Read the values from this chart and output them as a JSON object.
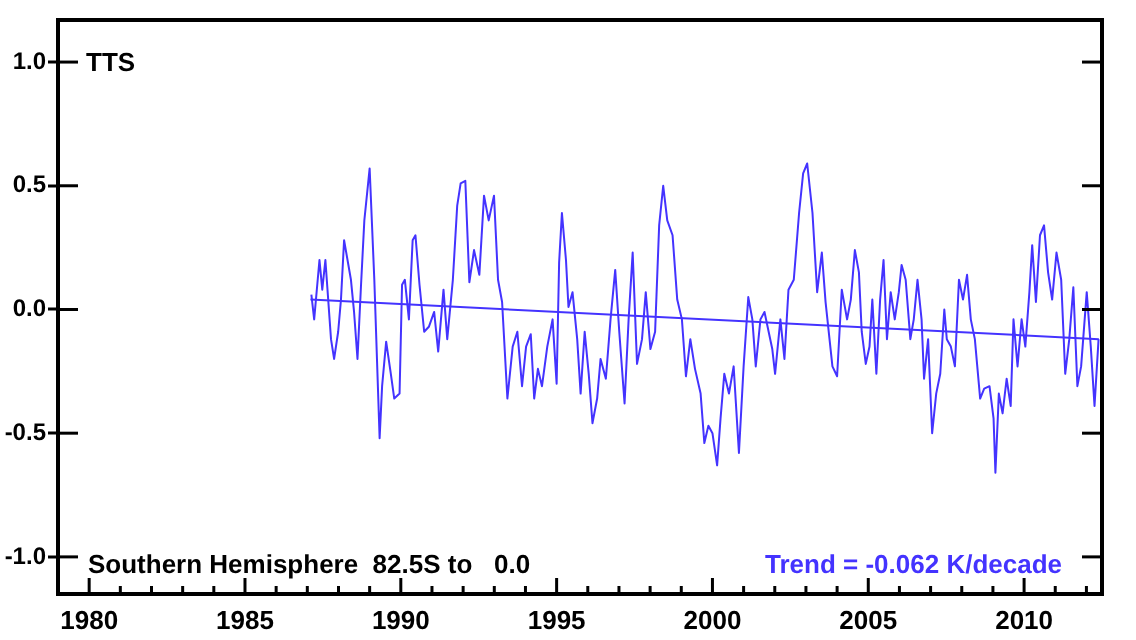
{
  "chart_data": {
    "type": "line",
    "annotations": [
      "TTS",
      "Southern Hemisphere  82.5S to   0.0",
      "Trend = -0.062 K/decade"
    ],
    "xlim": [
      1979,
      2012.5
    ],
    "xticks": [
      {
        "value": 1979,
        "label": null
      },
      {
        "value": 1980,
        "label": "1980"
      },
      {
        "value": 1981,
        "label": null
      },
      {
        "value": 1982,
        "label": null
      },
      {
        "value": 1983,
        "label": null
      },
      {
        "value": 1984,
        "label": null
      },
      {
        "value": 1985,
        "label": "1985"
      },
      {
        "value": 1986,
        "label": null
      },
      {
        "value": 1987,
        "label": null
      },
      {
        "value": 1988,
        "label": null
      },
      {
        "value": 1989,
        "label": null
      },
      {
        "value": 1990,
        "label": "1990"
      },
      {
        "value": 1991,
        "label": null
      },
      {
        "value": 1992,
        "label": null
      },
      {
        "value": 1993,
        "label": null
      },
      {
        "value": 1994,
        "label": null
      },
      {
        "value": 1995,
        "label": "1995"
      },
      {
        "value": 1996,
        "label": null
      },
      {
        "value": 1997,
        "label": null
      },
      {
        "value": 1998,
        "label": null
      },
      {
        "value": 1999,
        "label": null
      },
      {
        "value": 2000,
        "label": "2000"
      },
      {
        "value": 2001,
        "label": null
      },
      {
        "value": 2002,
        "label": null
      },
      {
        "value": 2003,
        "label": null
      },
      {
        "value": 2004,
        "label": null
      },
      {
        "value": 2005,
        "label": "2005"
      },
      {
        "value": 2006,
        "label": null
      },
      {
        "value": 2007,
        "label": null
      },
      {
        "value": 2008,
        "label": null
      },
      {
        "value": 2009,
        "label": null
      },
      {
        "value": 2010,
        "label": "2010"
      },
      {
        "value": 2011,
        "label": null
      },
      {
        "value": 2012,
        "label": null
      }
    ],
    "ylim": [
      -1.15,
      1.17
    ],
    "yticks": [
      {
        "value": -1,
        "label": "-1.0"
      },
      {
        "value": -0.5,
        "label": "-0.5"
      },
      {
        "value": 0,
        "label": "0.0"
      },
      {
        "value": 0.5,
        "label": "0.5"
      },
      {
        "value": 1,
        "label": "1.0"
      }
    ],
    "grid": false,
    "legend": false,
    "series": [
      {
        "type": "line",
        "color": "#4433ff",
        "x": [
          1987.13,
          1987.22,
          1987.39,
          1987.48,
          1987.58,
          1987.76,
          1987.86,
          1987.99,
          1988.08,
          1988.18,
          1988.4,
          1988.5,
          1988.61,
          1988.72,
          1988.83,
          1989.0,
          1989.15,
          1989.32,
          1989.4,
          1989.53,
          1989.68,
          1989.79,
          1989.96,
          1990.04,
          1990.13,
          1990.26,
          1990.38,
          1990.47,
          1990.6,
          1990.75,
          1990.9,
          1991.07,
          1991.2,
          1991.37,
          1991.49,
          1991.67,
          1991.81,
          1991.92,
          1992.07,
          1992.2,
          1992.35,
          1992.52,
          1992.67,
          1992.82,
          1992.99,
          1993.12,
          1993.25,
          1993.42,
          1993.59,
          1993.74,
          1993.89,
          1994.02,
          1994.17,
          1994.28,
          1994.4,
          1994.53,
          1994.7,
          1994.87,
          1995.0,
          1995.08,
          1995.17,
          1995.3,
          1995.38,
          1995.51,
          1995.66,
          1995.77,
          1995.9,
          1996.03,
          1996.15,
          1996.3,
          1996.41,
          1996.58,
          1996.73,
          1996.88,
          1997.01,
          1997.18,
          1997.31,
          1997.44,
          1997.58,
          1997.74,
          1997.86,
          1998.01,
          1998.16,
          1998.29,
          1998.42,
          1998.55,
          1998.72,
          1998.87,
          1999.02,
          1999.15,
          1999.29,
          1999.44,
          1999.62,
          1999.74,
          1999.87,
          2000.0,
          2000.15,
          2000.26,
          2000.38,
          2000.53,
          2000.68,
          2000.85,
          2001.0,
          2001.15,
          2001.28,
          2001.39,
          2001.54,
          2001.67,
          2001.92,
          2002.01,
          2002.18,
          2002.31,
          2002.44,
          2002.61,
          2002.78,
          2002.91,
          2003.04,
          2003.21,
          2003.36,
          2003.51,
          2003.63,
          2003.85,
          2004.0,
          2004.15,
          2004.32,
          2004.44,
          2004.57,
          2004.7,
          2004.79,
          2004.92,
          2005.04,
          2005.13,
          2005.26,
          2005.38,
          2005.49,
          2005.6,
          2005.72,
          2005.85,
          2005.98,
          2006.07,
          2006.2,
          2006.35,
          2006.46,
          2006.58,
          2006.71,
          2006.79,
          2006.92,
          2007.05,
          2007.18,
          2007.31,
          2007.44,
          2007.52,
          2007.65,
          2007.78,
          2007.91,
          2008.04,
          2008.17,
          2008.29,
          2008.42,
          2008.59,
          2008.72,
          2008.89,
          2009.02,
          2009.08,
          2009.19,
          2009.31,
          2009.44,
          2009.57,
          2009.66,
          2009.79,
          2009.92,
          2010.04,
          2010.17,
          2010.26,
          2010.38,
          2010.51,
          2010.64,
          2010.77,
          2010.9,
          2011.04,
          2011.19,
          2011.32,
          2011.45,
          2011.58,
          2011.71,
          2011.83,
          2012.01,
          2012.14,
          2012.26,
          2012.39
        ],
        "values": [
          0.06,
          -0.04,
          0.2,
          0.08,
          0.2,
          -0.12,
          -0.2,
          -0.09,
          0.04,
          0.28,
          0.12,
          -0.01,
          -0.2,
          0.09,
          0.36,
          0.57,
          0.12,
          -0.52,
          -0.31,
          -0.13,
          -0.26,
          -0.36,
          -0.34,
          0.1,
          0.12,
          -0.04,
          0.28,
          0.3,
          0.1,
          -0.09,
          -0.07,
          -0.01,
          -0.17,
          0.08,
          -0.12,
          0.12,
          0.42,
          0.51,
          0.52,
          0.11,
          0.24,
          0.14,
          0.46,
          0.36,
          0.46,
          0.12,
          0.03,
          -0.36,
          -0.15,
          -0.09,
          -0.31,
          -0.15,
          -0.1,
          -0.36,
          -0.24,
          -0.31,
          -0.15,
          -0.04,
          -0.3,
          0.19,
          0.39,
          0.2,
          0.01,
          0.07,
          -0.12,
          -0.34,
          -0.09,
          -0.26,
          -0.46,
          -0.36,
          -0.2,
          -0.28,
          -0.04,
          0.16,
          -0.09,
          -0.38,
          -0.04,
          0.23,
          -0.22,
          -0.12,
          0.07,
          -0.16,
          -0.09,
          0.34,
          0.5,
          0.36,
          0.3,
          0.04,
          -0.04,
          -0.27,
          -0.12,
          -0.24,
          -0.34,
          -0.54,
          -0.47,
          -0.5,
          -0.63,
          -0.44,
          -0.26,
          -0.34,
          -0.23,
          -0.58,
          -0.23,
          0.05,
          -0.04,
          -0.23,
          -0.04,
          -0.01,
          -0.16,
          -0.26,
          -0.04,
          -0.2,
          0.08,
          0.12,
          0.39,
          0.55,
          0.59,
          0.39,
          0.07,
          0.23,
          0.03,
          -0.23,
          -0.27,
          0.08,
          -0.04,
          0.04,
          0.24,
          0.15,
          -0.09,
          -0.22,
          -0.15,
          0.04,
          -0.26,
          0.04,
          0.2,
          -0.12,
          0.07,
          -0.04,
          0.07,
          0.18,
          0.12,
          -0.12,
          -0.04,
          0.12,
          -0.04,
          -0.28,
          -0.12,
          -0.5,
          -0.34,
          -0.26,
          0.0,
          -0.12,
          -0.15,
          -0.23,
          0.12,
          0.04,
          0.14,
          -0.04,
          -0.12,
          -0.36,
          -0.32,
          -0.31,
          -0.44,
          -0.66,
          -0.34,
          -0.42,
          -0.28,
          -0.39,
          -0.04,
          -0.23,
          -0.04,
          -0.15,
          0.07,
          0.26,
          0.03,
          0.3,
          0.34,
          0.15,
          0.04,
          0.23,
          0.12,
          -0.26,
          -0.12,
          0.09,
          -0.31,
          -0.23,
          0.07,
          -0.15,
          -0.39,
          -0.12
        ]
      },
      {
        "type": "line",
        "color": "#4433ff",
        "x": [
          1987.1,
          2012.4
        ],
        "values": [
          0.04,
          -0.12
        ]
      }
    ]
  }
}
